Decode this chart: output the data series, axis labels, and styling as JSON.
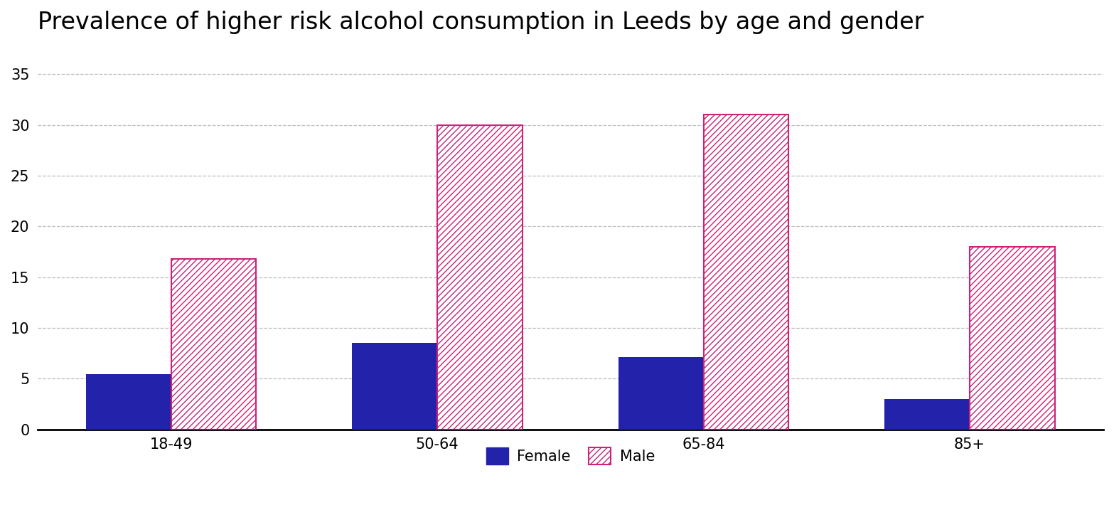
{
  "title": "Prevalence of higher risk alcohol consumption in Leeds by age and gender",
  "categories": [
    "18-49",
    "50-64",
    "65-84",
    "85+"
  ],
  "female_values": [
    5.4,
    8.5,
    7.1,
    3.0
  ],
  "male_values": [
    16.8,
    30.0,
    31.0,
    18.0
  ],
  "female_color": "#2222aa",
  "male_hatch_color": "#cc2277",
  "ylim": [
    0,
    37
  ],
  "yticks": [
    0,
    5,
    10,
    15,
    20,
    25,
    30,
    35
  ],
  "bar_width": 0.32,
  "background_color": "#ffffff",
  "title_fontsize": 24,
  "tick_fontsize": 15,
  "legend_fontsize": 15,
  "legend_labels": [
    "Female",
    "Male"
  ],
  "grid_color": "#bbbbbb"
}
